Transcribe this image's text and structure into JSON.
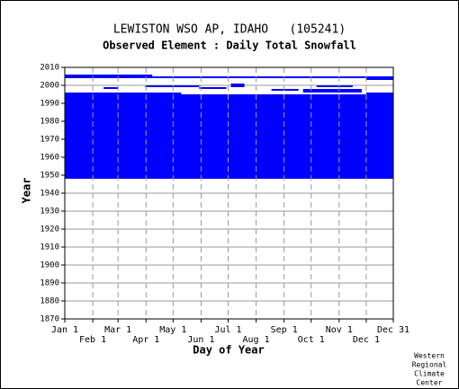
{
  "chart_data": {
    "type": "availability",
    "title": "LEWISTON WSO AP, IDAHO   (105241)",
    "subtitle": "Observed Element : Daily Total Snowfall",
    "xlabel": "Day of Year",
    "ylabel": "Year",
    "credit": [
      "Western",
      "Regional",
      "Climate",
      "Center"
    ],
    "color": "#0000ff",
    "xlim": [
      1,
      365
    ],
    "ylim": [
      1870,
      2010
    ],
    "xticks": [
      {
        "value": 1,
        "label": "Jan 1"
      },
      {
        "value": 32,
        "label": "Feb 1"
      },
      {
        "value": 60,
        "label": "Mar 1"
      },
      {
        "value": 91,
        "label": "Apr 1"
      },
      {
        "value": 121,
        "label": "May 1"
      },
      {
        "value": 152,
        "label": "Jun 1"
      },
      {
        "value": 182,
        "label": "Jul 1"
      },
      {
        "value": 213,
        "label": "Aug 1"
      },
      {
        "value": 244,
        "label": "Sep 1"
      },
      {
        "value": 274,
        "label": "Oct 1"
      },
      {
        "value": 305,
        "label": "Nov 1"
      },
      {
        "value": 335,
        "label": "Dec 1"
      },
      {
        "value": 365,
        "label": "Dec 31"
      }
    ],
    "yticks": [
      1870,
      1880,
      1890,
      1900,
      1910,
      1920,
      1930,
      1940,
      1950,
      1960,
      1970,
      1980,
      1990,
      2000,
      2010
    ],
    "grid": true,
    "blocks": [
      {
        "x": [
          1,
          365
        ],
        "y": [
          1948,
          1995
        ]
      },
      {
        "x": [
          1,
          130
        ],
        "y": [
          1995,
          1996
        ]
      },
      {
        "x": [
          1,
          60
        ],
        "y": [
          2004,
          2006
        ]
      },
      {
        "x": [
          60,
          98
        ],
        "y": [
          2004,
          2006
        ]
      },
      {
        "x": [
          98,
          335
        ],
        "y": [
          2004,
          2005
        ]
      },
      {
        "x": [
          335,
          365
        ],
        "y": [
          2003,
          2005
        ]
      },
      {
        "x": [
          44,
          60
        ],
        "y": [
          1998,
          1999
        ]
      },
      {
        "x": [
          90,
          150
        ],
        "y": [
          1999,
          2000
        ]
      },
      {
        "x": [
          150,
          180
        ],
        "y": [
          1998,
          1999
        ]
      },
      {
        "x": [
          185,
          200
        ],
        "y": [
          1999,
          2001
        ]
      },
      {
        "x": [
          230,
          260
        ],
        "y": [
          1997,
          1998
        ]
      },
      {
        "x": [
          265,
          330
        ],
        "y": [
          1996,
          1998
        ]
      },
      {
        "x": [
          280,
          320
        ],
        "y": [
          1999,
          2000
        ]
      },
      {
        "x": [
          335,
          365
        ],
        "y": [
          1995,
          1996
        ]
      }
    ]
  }
}
